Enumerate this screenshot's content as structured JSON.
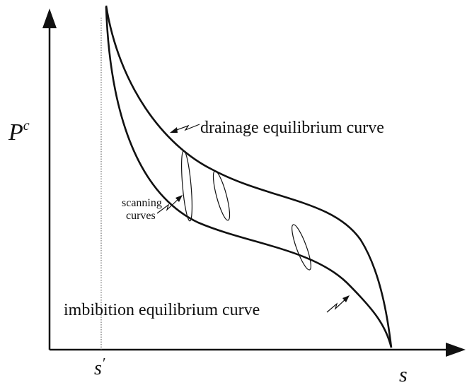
{
  "axes": {
    "y_label": {
      "base": "P",
      "sup": "c"
    },
    "x_label": "s",
    "x_marker": {
      "base": "s",
      "sup": "′"
    }
  },
  "curves": {
    "drainage": "drainage equilibrium curve",
    "imbibition": "imbibition equilibrium curve",
    "scanning": [
      "scanning",
      "curves"
    ]
  }
}
